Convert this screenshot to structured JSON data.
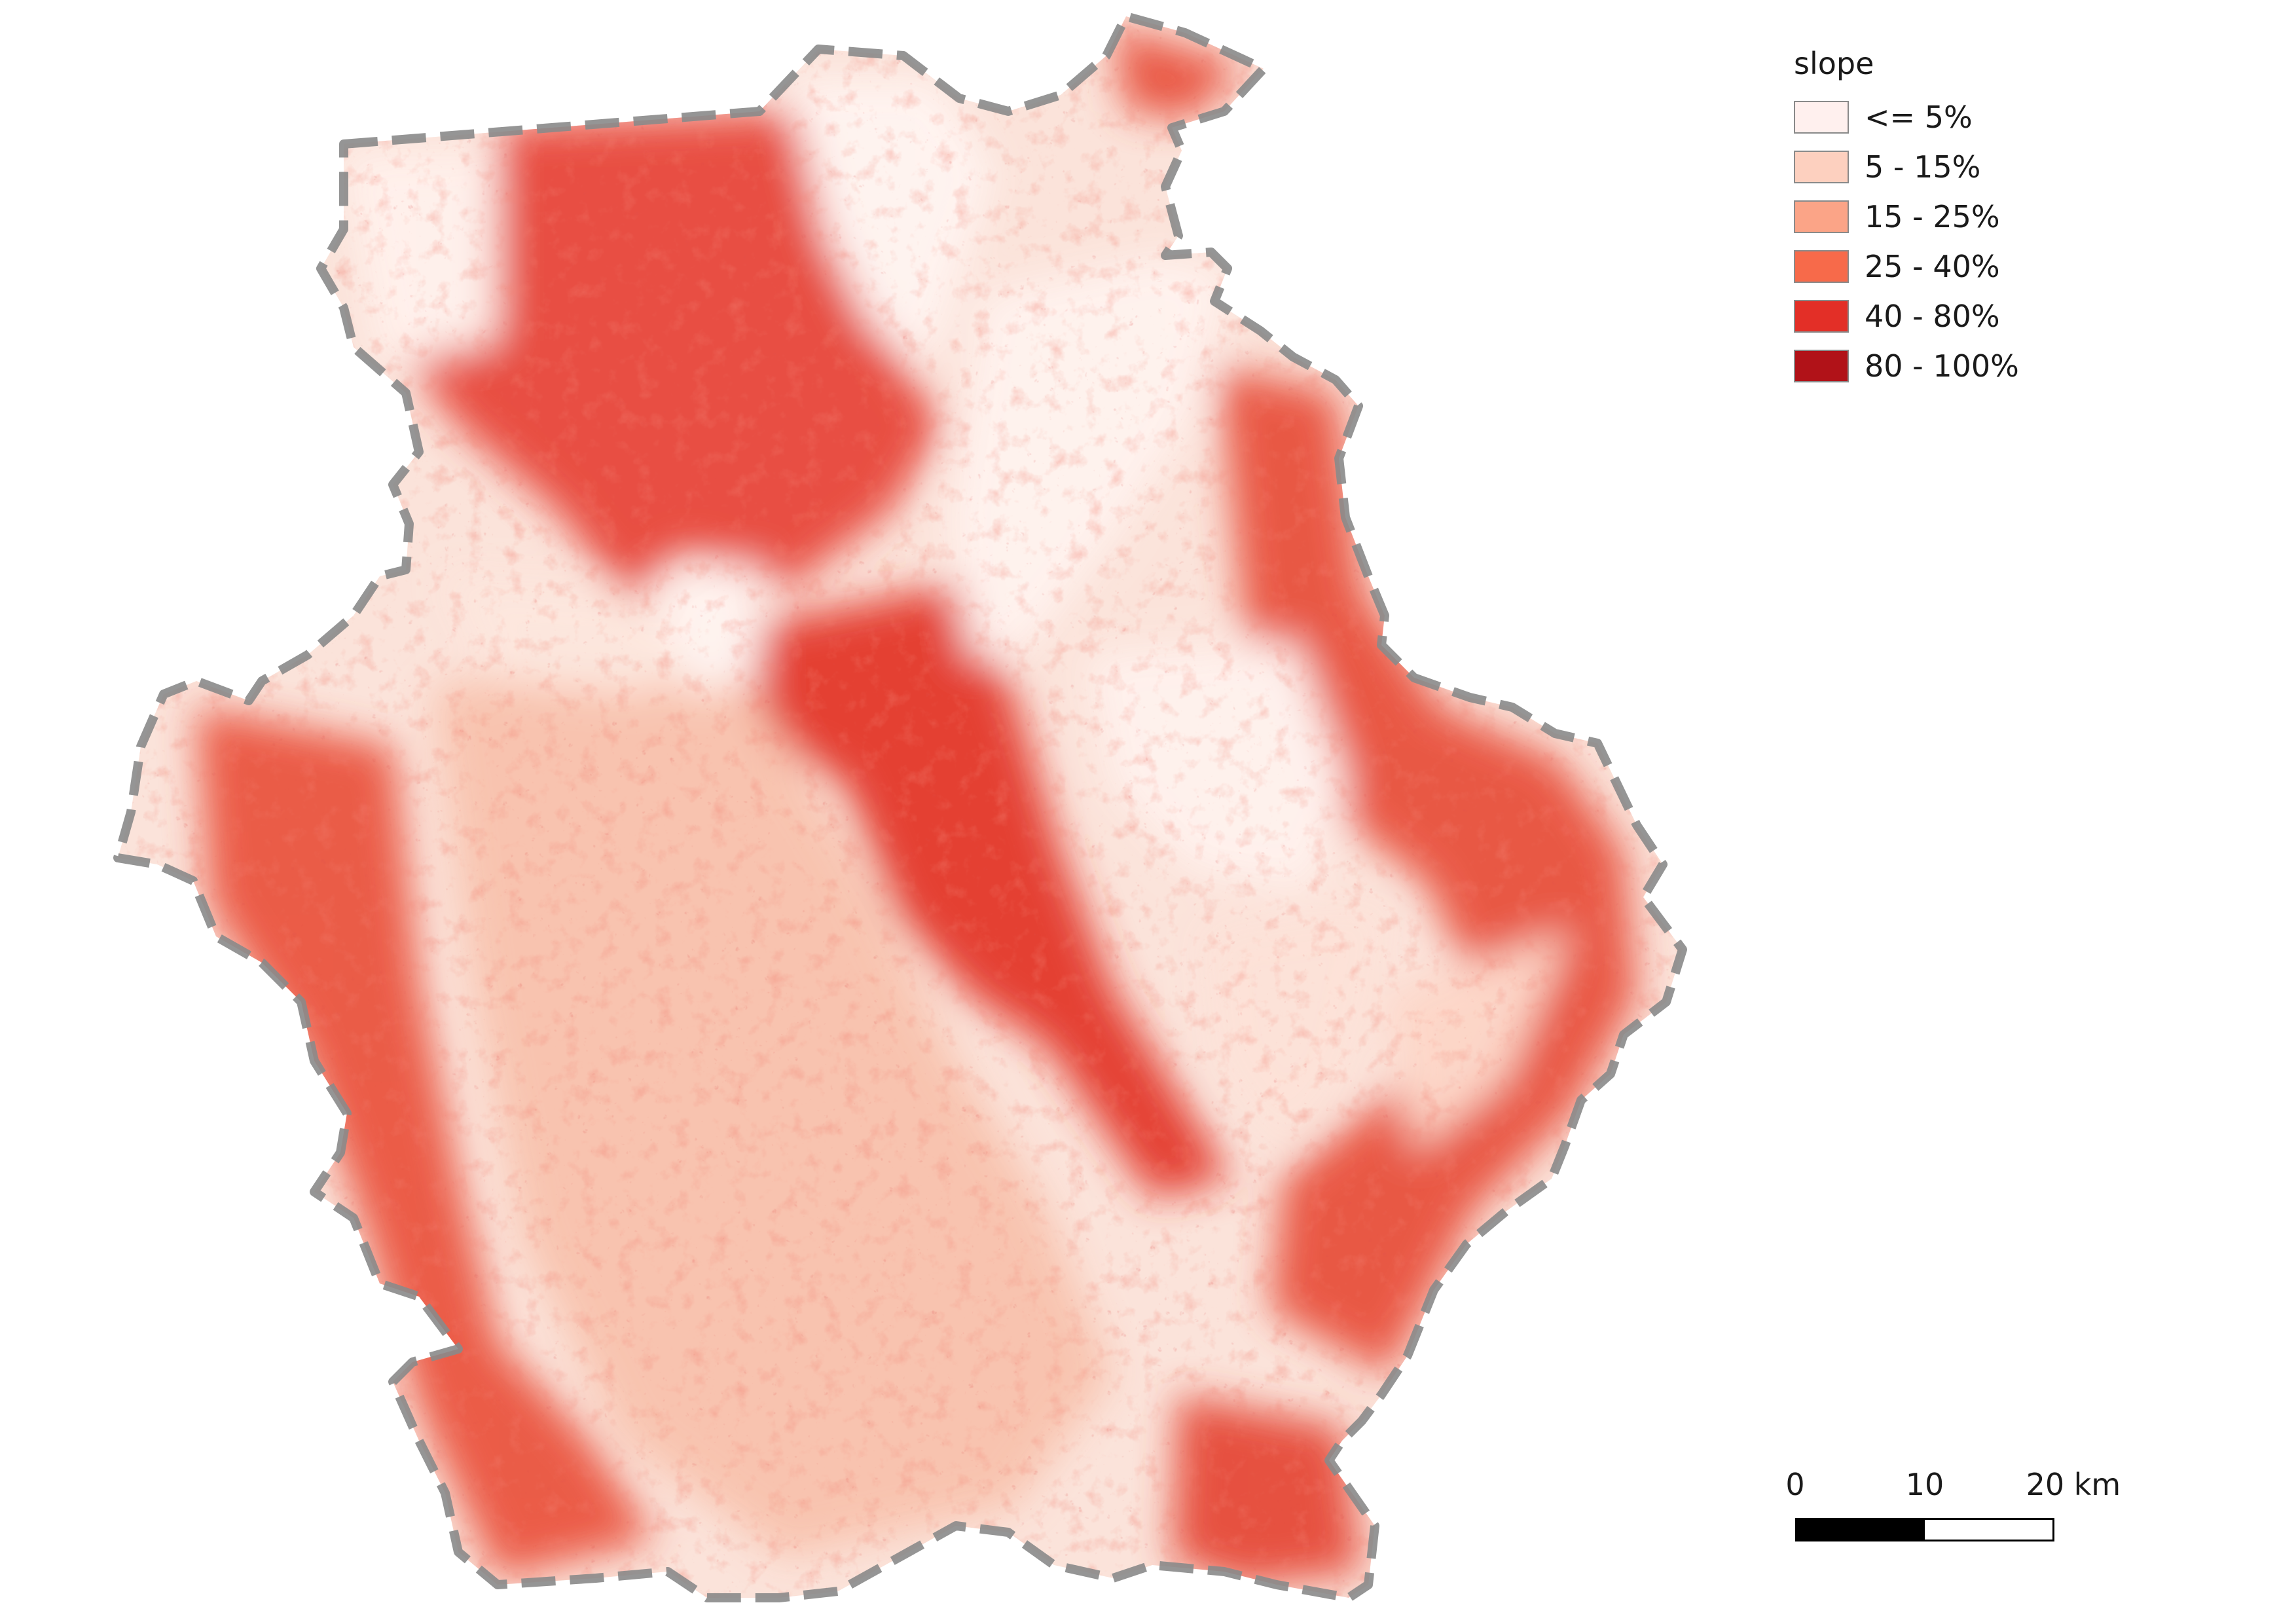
{
  "legend": {
    "title": "slope",
    "classes": [
      {
        "label": "<= 5%",
        "color": "#fff0ee"
      },
      {
        "label": "5 - 15%",
        "color": "#fdd0bf"
      },
      {
        "label": "15 - 25%",
        "color": "#fba487"
      },
      {
        "label": "25 - 40%",
        "color": "#f76a4a"
      },
      {
        "label": "40 - 80%",
        "color": "#e32f27"
      },
      {
        "label": "80 - 100%",
        "color": "#b11218"
      }
    ]
  },
  "scalebar": {
    "labels": [
      "0",
      "10",
      "20 km"
    ]
  },
  "map": {
    "boundary_color": "#8a8a8a",
    "boundary_style": "dashed"
  }
}
